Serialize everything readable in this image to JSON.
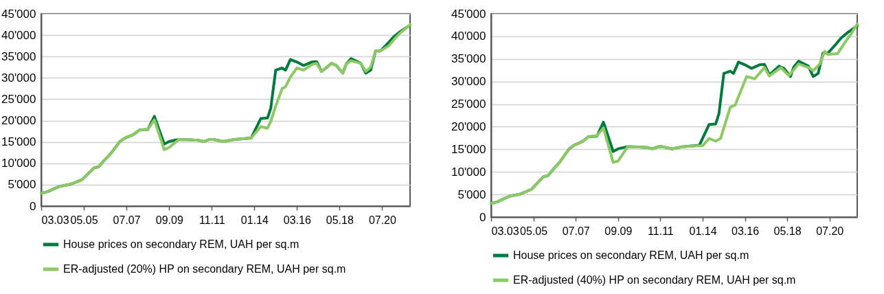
{
  "chart_data": [
    {
      "type": "line",
      "line_style": "solid",
      "marker": "none",
      "grid": "y",
      "legend": "bottom",
      "xlim": [
        "2003-03",
        "2021-12"
      ],
      "ylim": [
        0,
        45000
      ],
      "xticks": [
        {
          "value": "2003-03",
          "label": "03.03"
        },
        {
          "value": "2005-05",
          "label": "05.05"
        },
        {
          "value": "2007-07",
          "label": "07.07"
        },
        {
          "value": "2009-09",
          "label": "09.09"
        },
        {
          "value": "2011-11",
          "label": "11.11"
        },
        {
          "value": "2014-01",
          "label": "01.14"
        },
        {
          "value": "2016-03",
          "label": "03.16"
        },
        {
          "value": "2018-05",
          "label": "05.18"
        },
        {
          "value": "2020-07",
          "label": "07.20"
        }
      ],
      "yticks": [
        0,
        {
          "value": 5000,
          "label": "5'000"
        },
        {
          "value": 10000,
          "label": "10'000"
        },
        {
          "value": 15000,
          "label": "15'000"
        },
        {
          "value": 20000,
          "label": "20'000"
        },
        {
          "value": 25000,
          "label": "25'000"
        },
        {
          "value": 30000,
          "label": "30'000"
        },
        {
          "value": 35000,
          "label": "35'000"
        },
        {
          "value": 40000,
          "label": "40'000"
        },
        {
          "value": 45000,
          "label": "45'000"
        }
      ],
      "series": [
        {
          "name": "House prices on secondary REM, UAH per sq.m",
          "color": "#007a3d",
          "x": [
            "2003-03",
            "2003-07",
            "2004-02",
            "2004-09",
            "2005-04",
            "2005-11",
            "2006-02",
            "2006-05",
            "2006-09",
            "2007-03",
            "2007-06",
            "2007-11",
            "2008-03",
            "2008-08",
            "2008-12",
            "2009-06",
            "2009-09",
            "2010-03",
            "2010-10",
            "2011-03",
            "2011-06",
            "2011-10",
            "2011-12",
            "2012-06",
            "2013-01",
            "2013-11",
            "2014-05",
            "2014-09",
            "2014-11",
            "2015-02",
            "2015-06",
            "2015-08",
            "2015-11",
            "2016-03",
            "2016-07",
            "2016-12",
            "2017-03",
            "2017-06",
            "2017-08",
            "2017-12",
            "2018-03",
            "2018-07",
            "2018-09",
            "2018-12",
            "2019-06",
            "2019-09",
            "2019-12",
            "2020-03",
            "2020-06",
            "2020-11",
            "2021-02",
            "2021-06",
            "2021-12"
          ],
          "values": [
            3000,
            3400,
            4600,
            5100,
            6200,
            8900,
            9200,
            10500,
            12100,
            15100,
            15900,
            16700,
            17800,
            17900,
            21000,
            14500,
            15100,
            15600,
            15500,
            15400,
            15100,
            15600,
            15600,
            15100,
            15600,
            15900,
            20500,
            20600,
            22900,
            31800,
            32300,
            31800,
            34300,
            33700,
            32900,
            33700,
            33800,
            31500,
            32100,
            33400,
            32900,
            31100,
            33200,
            34500,
            33400,
            31100,
            31800,
            36300,
            36300,
            38300,
            39600,
            40800,
            42300
          ]
        },
        {
          "name": "ER-adjusted (20%) HP on secondary REM, UAH per sq.m",
          "color": "#8cc863",
          "x": [
            "2003-03",
            "2003-07",
            "2004-02",
            "2004-09",
            "2005-04",
            "2005-11",
            "2006-02",
            "2006-05",
            "2006-09",
            "2007-03",
            "2007-06",
            "2007-11",
            "2008-03",
            "2008-08",
            "2008-12",
            "2009-06",
            "2009-09",
            "2010-03",
            "2010-10",
            "2011-03",
            "2011-06",
            "2011-10",
            "2011-12",
            "2012-06",
            "2013-01",
            "2013-11",
            "2014-05",
            "2014-09",
            "2014-11",
            "2015-02",
            "2015-06",
            "2015-08",
            "2015-11",
            "2016-03",
            "2016-07",
            "2016-12",
            "2017-03",
            "2017-06",
            "2017-08",
            "2017-12",
            "2018-03",
            "2018-07",
            "2018-09",
            "2018-12",
            "2019-06",
            "2019-09",
            "2019-12",
            "2020-03",
            "2020-06",
            "2020-11",
            "2021-02",
            "2021-06",
            "2021-12"
          ],
          "values": [
            3000,
            3400,
            4600,
            5100,
            6200,
            8900,
            9200,
            10500,
            12100,
            15100,
            15900,
            16700,
            17800,
            17900,
            20200,
            13200,
            13700,
            15600,
            15500,
            15400,
            15100,
            15600,
            15600,
            15100,
            15600,
            15900,
            18600,
            18200,
            19800,
            23400,
            27500,
            27900,
            30200,
            32300,
            31800,
            33100,
            33400,
            31500,
            32100,
            33400,
            32900,
            31100,
            33200,
            34000,
            33400,
            31500,
            32500,
            36300,
            36300,
            37500,
            38900,
            40500,
            42400
          ]
        }
      ]
    },
    {
      "type": "line",
      "line_style": "solid",
      "marker": "none",
      "grid": "y",
      "legend": "bottom",
      "xlim": [
        "2003-03",
        "2021-12"
      ],
      "ylim": [
        0,
        45000
      ],
      "xticks": [
        {
          "value": "2003-03",
          "label": "03.03"
        },
        {
          "value": "2005-05",
          "label": "05.05"
        },
        {
          "value": "2007-07",
          "label": "07.07"
        },
        {
          "value": "2009-09",
          "label": "09.09"
        },
        {
          "value": "2011-11",
          "label": "11.11"
        },
        {
          "value": "2014-01",
          "label": "01.14"
        },
        {
          "value": "2016-03",
          "label": "03.16"
        },
        {
          "value": "2018-05",
          "label": "05.18"
        },
        {
          "value": "2020-07",
          "label": "07.20"
        }
      ],
      "yticks": [
        0,
        {
          "value": 5000,
          "label": "5'000"
        },
        {
          "value": 10000,
          "label": "10'000"
        },
        {
          "value": 15000,
          "label": "15'000"
        },
        {
          "value": 20000,
          "label": "20'000"
        },
        {
          "value": 25000,
          "label": "25'000"
        },
        {
          "value": 30000,
          "label": "30'000"
        },
        {
          "value": 35000,
          "label": "35'000"
        },
        {
          "value": 40000,
          "label": "40'000"
        },
        {
          "value": 45000,
          "label": "45'000"
        }
      ],
      "series": [
        {
          "name": "House prices on secondary REM, UAH per sq.m",
          "color": "#007a3d",
          "x": [
            "2003-03",
            "2003-07",
            "2004-02",
            "2004-09",
            "2005-04",
            "2005-11",
            "2006-02",
            "2006-05",
            "2006-09",
            "2007-03",
            "2007-06",
            "2007-11",
            "2008-03",
            "2008-08",
            "2008-12",
            "2009-06",
            "2009-09",
            "2010-03",
            "2010-10",
            "2011-03",
            "2011-06",
            "2011-10",
            "2011-12",
            "2012-06",
            "2013-01",
            "2013-11",
            "2014-05",
            "2014-09",
            "2014-11",
            "2015-02",
            "2015-06",
            "2015-08",
            "2015-11",
            "2016-03",
            "2016-07",
            "2016-12",
            "2017-03",
            "2017-06",
            "2017-08",
            "2017-12",
            "2018-03",
            "2018-07",
            "2018-09",
            "2018-12",
            "2019-06",
            "2019-09",
            "2019-12",
            "2020-03",
            "2020-06",
            "2020-11",
            "2021-02",
            "2021-06",
            "2021-12"
          ],
          "values": [
            3000,
            3400,
            4600,
            5100,
            6200,
            8900,
            9200,
            10500,
            12100,
            15100,
            15900,
            16700,
            17800,
            17900,
            21000,
            14500,
            15100,
            15600,
            15500,
            15400,
            15100,
            15600,
            15600,
            15100,
            15600,
            15900,
            20500,
            20600,
            22900,
            31800,
            32300,
            31800,
            34300,
            33700,
            32900,
            33700,
            33800,
            31500,
            32100,
            33400,
            32900,
            31100,
            33200,
            34500,
            33400,
            31100,
            31800,
            36300,
            36300,
            38300,
            39600,
            40800,
            42300
          ]
        },
        {
          "name": "ER-adjusted (40%) HP on secondary REM, UAH per sq.m",
          "color": "#8cc863",
          "x": [
            "2003-03",
            "2003-07",
            "2004-02",
            "2004-09",
            "2005-04",
            "2005-11",
            "2006-02",
            "2006-05",
            "2006-09",
            "2007-03",
            "2007-06",
            "2007-11",
            "2008-03",
            "2008-08",
            "2008-12",
            "2009-06",
            "2009-09",
            "2010-03",
            "2010-10",
            "2011-03",
            "2011-06",
            "2011-10",
            "2011-12",
            "2012-06",
            "2013-01",
            "2014-01",
            "2014-05",
            "2014-09",
            "2014-12",
            "2015-06",
            "2015-09",
            "2016-04",
            "2016-09",
            "2017-03",
            "2017-06",
            "2018-01",
            "2018-06",
            "2018-12",
            "2019-06",
            "2019-09",
            "2020-01",
            "2020-04",
            "2020-06",
            "2020-12",
            "2021-04",
            "2021-08",
            "2021-12"
          ],
          "values": [
            3000,
            3400,
            4600,
            5100,
            6200,
            8900,
            9200,
            10500,
            12100,
            15100,
            15900,
            16700,
            17800,
            18000,
            19700,
            12100,
            12400,
            15600,
            15500,
            15400,
            15100,
            15600,
            15600,
            15100,
            15600,
            15800,
            17400,
            16800,
            17400,
            24300,
            24800,
            31100,
            30600,
            33100,
            31200,
            33100,
            31300,
            33900,
            33100,
            32400,
            33900,
            36700,
            36000,
            36200,
            38400,
            40400,
            42700
          ]
        }
      ]
    }
  ]
}
